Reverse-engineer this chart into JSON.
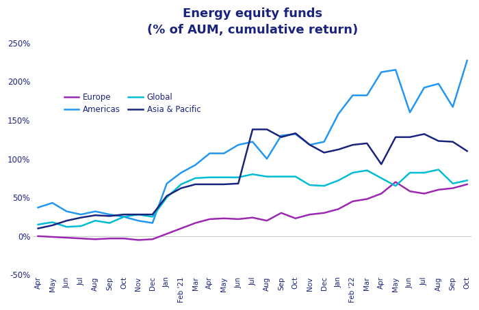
{
  "title": "Energy equity funds\n(% of AUM, cumulative return)",
  "x_labels": [
    "Apr",
    "May",
    "Jun",
    "Jul",
    "Aug",
    "Sep",
    "Oct",
    "Nov",
    "Dec",
    "Jan",
    "Feb '21",
    "Mar",
    "Apr",
    "May",
    "Jun",
    "Jul",
    "Aug",
    "Sep",
    "Oct",
    "Nov",
    "Dec",
    "Jan",
    "Feb '22",
    "Mar",
    "Apr",
    "May",
    "Jun",
    "Jul",
    "Aug",
    "Sep",
    "Oct"
  ],
  "europe": [
    0,
    -1,
    -2,
    -3,
    -4,
    -3,
    -3,
    -5,
    -4,
    3,
    10,
    17,
    22,
    23,
    22,
    24,
    20,
    30,
    23,
    28,
    30,
    35,
    45,
    48,
    55,
    70,
    58,
    55,
    60,
    62,
    67
  ],
  "americas": [
    37,
    43,
    32,
    28,
    32,
    28,
    25,
    20,
    17,
    68,
    82,
    92,
    107,
    107,
    118,
    122,
    100,
    130,
    132,
    118,
    122,
    158,
    182,
    182,
    212,
    215,
    160,
    192,
    197,
    167,
    227
  ],
  "global": [
    15,
    18,
    12,
    13,
    20,
    17,
    25,
    28,
    25,
    50,
    67,
    75,
    76,
    76,
    76,
    80,
    77,
    77,
    77,
    66,
    65,
    72,
    82,
    85,
    75,
    65,
    82,
    82,
    86,
    68,
    72
  ],
  "asia_pacific": [
    10,
    14,
    20,
    24,
    27,
    26,
    28,
    28,
    28,
    52,
    62,
    67,
    67,
    67,
    68,
    138,
    138,
    128,
    133,
    118,
    108,
    112,
    118,
    120,
    93,
    128,
    128,
    132,
    123,
    122,
    110
  ],
  "europe_color": "#9C27B0",
  "americas_color": "#2196F3",
  "global_color": "#00BCD4",
  "asia_pacific_color": "#1A237E",
  "background_color": "#FFFFFF",
  "ylim": [
    -50,
    250
  ],
  "yticks": [
    -50,
    0,
    50,
    100,
    150,
    200,
    250
  ],
  "title_color": "#1A237E",
  "tick_color": "#1A237E",
  "line_width": 1.8,
  "legend_entries": [
    "Europe",
    "Americas",
    "Global",
    "Asia & Pacific"
  ],
  "figsize": [
    7.0,
    4.54
  ],
  "dpi": 100
}
